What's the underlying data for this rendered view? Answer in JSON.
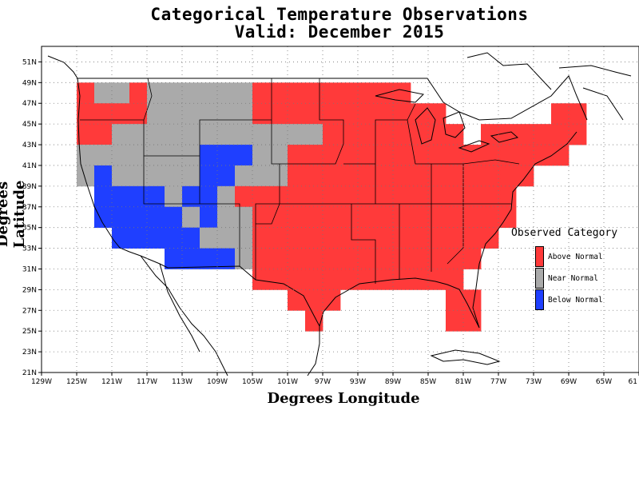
{
  "title": "Categorical Temperature Observations",
  "subtitle": "Valid: December 2015",
  "ylabel": "Degrees Latitude",
  "xlabel": "Degrees Longitude",
  "lat_ticks": [
    "21N",
    "23N",
    "25N",
    "27N",
    "29N",
    "31N",
    "33N",
    "35N",
    "37N",
    "39N",
    "41N",
    "43N",
    "45N",
    "47N",
    "49N",
    "51N"
  ],
  "lon_ticks": [
    "129W",
    "125W",
    "121W",
    "117W",
    "113W",
    "109W",
    "105W",
    "101W",
    "97W",
    "93W",
    "89W",
    "85W",
    "81W",
    "77W",
    "73W",
    "69W",
    "65W",
    "61"
  ],
  "legend": {
    "title": "Observed Category",
    "items": [
      {
        "label": "Above Normal",
        "color": "#ff3a3a"
      },
      {
        "label": "Near Normal",
        "color": "#aaaaaa"
      },
      {
        "label": "Below Normal",
        "color": "#1f3fff"
      }
    ]
  },
  "colors": {
    "A": "#ff3a3a",
    "N": "#aaaaaa",
    "B": "#1f3fff"
  },
  "grid": "dotted lat/lon graticule every 2 degrees",
  "chart_data": {
    "type": "heatmap",
    "cell_size_deg": 2,
    "x_ticks_lon": [
      -129,
      -125,
      -121,
      -117,
      -113,
      -109,
      -105,
      -101,
      -97,
      -93,
      -89,
      -85,
      -81,
      -77,
      -73,
      -69,
      -65,
      -61
    ],
    "y_ticks_lat": [
      21,
      23,
      25,
      27,
      29,
      31,
      33,
      35,
      37,
      39,
      41,
      43,
      45,
      47,
      49,
      51
    ],
    "xlim_lon": [
      -129,
      -61
    ],
    "ylim_lat": [
      21,
      52.5
    ],
    "categories": {
      "A": "Above Normal",
      "N": "Near Normal",
      "B": "Below Normal"
    },
    "rows": [
      {
        "lat": 48,
        "cells": [
          [
            -124,
            "A"
          ],
          [
            -122,
            "N"
          ],
          [
            -120,
            "N"
          ],
          [
            -118,
            "A"
          ],
          [
            -116,
            "N"
          ],
          [
            -114,
            "N"
          ],
          [
            -112,
            "N"
          ],
          [
            -110,
            "N"
          ],
          [
            -108,
            "N"
          ],
          [
            -106,
            "N"
          ],
          [
            -104,
            "A"
          ],
          [
            -102,
            "A"
          ],
          [
            -100,
            "A"
          ],
          [
            -98,
            "A"
          ],
          [
            -96,
            "A"
          ],
          [
            -94,
            "A"
          ],
          [
            -92,
            "A"
          ],
          [
            -90,
            "A"
          ],
          [
            -88,
            "A"
          ]
        ]
      },
      {
        "lat": 46,
        "cells": [
          [
            -124,
            "A"
          ],
          [
            -122,
            "A"
          ],
          [
            -120,
            "A"
          ],
          [
            -118,
            "A"
          ],
          [
            -116,
            "N"
          ],
          [
            -114,
            "N"
          ],
          [
            -112,
            "N"
          ],
          [
            -110,
            "N"
          ],
          [
            -108,
            "N"
          ],
          [
            -106,
            "N"
          ],
          [
            -104,
            "A"
          ],
          [
            -102,
            "A"
          ],
          [
            -100,
            "A"
          ],
          [
            -98,
            "A"
          ],
          [
            -96,
            "A"
          ],
          [
            -94,
            "A"
          ],
          [
            -92,
            "A"
          ],
          [
            -90,
            "A"
          ],
          [
            -88,
            "A"
          ],
          [
            -86,
            "A"
          ],
          [
            -84,
            "A"
          ],
          [
            -70,
            "A"
          ],
          [
            -68,
            "A"
          ]
        ]
      },
      {
        "lat": 44,
        "cells": [
          [
            -124,
            "A"
          ],
          [
            -122,
            "A"
          ],
          [
            -120,
            "N"
          ],
          [
            -118,
            "N"
          ],
          [
            -116,
            "N"
          ],
          [
            -114,
            "N"
          ],
          [
            -112,
            "N"
          ],
          [
            -110,
            "N"
          ],
          [
            -108,
            "N"
          ],
          [
            -106,
            "N"
          ],
          [
            -104,
            "N"
          ],
          [
            -102,
            "N"
          ],
          [
            -100,
            "N"
          ],
          [
            -98,
            "N"
          ],
          [
            -96,
            "A"
          ],
          [
            -94,
            "A"
          ],
          [
            -92,
            "A"
          ],
          [
            -90,
            "A"
          ],
          [
            -88,
            "A"
          ],
          [
            -86,
            "A"
          ],
          [
            -84,
            "A"
          ],
          [
            -82,
            "A"
          ],
          [
            -78,
            "A"
          ],
          [
            -76,
            "A"
          ],
          [
            -74,
            "A"
          ],
          [
            -72,
            "A"
          ],
          [
            -70,
            "A"
          ],
          [
            -68,
            "A"
          ]
        ]
      },
      {
        "lat": 42,
        "cells": [
          [
            -124,
            "N"
          ],
          [
            -122,
            "N"
          ],
          [
            -120,
            "N"
          ],
          [
            -118,
            "N"
          ],
          [
            -116,
            "N"
          ],
          [
            -114,
            "N"
          ],
          [
            -112,
            "N"
          ],
          [
            -110,
            "B"
          ],
          [
            -108,
            "B"
          ],
          [
            -106,
            "B"
          ],
          [
            -104,
            "N"
          ],
          [
            -102,
            "N"
          ],
          [
            -100,
            "A"
          ],
          [
            -98,
            "A"
          ],
          [
            -96,
            "A"
          ],
          [
            -94,
            "A"
          ],
          [
            -92,
            "A"
          ],
          [
            -90,
            "A"
          ],
          [
            -88,
            "A"
          ],
          [
            -86,
            "A"
          ],
          [
            -84,
            "A"
          ],
          [
            -82,
            "A"
          ],
          [
            -80,
            "A"
          ],
          [
            -78,
            "A"
          ],
          [
            -76,
            "A"
          ],
          [
            -74,
            "A"
          ],
          [
            -72,
            "A"
          ],
          [
            -70,
            "A"
          ]
        ]
      },
      {
        "lat": 40,
        "cells": [
          [
            -124,
            "N"
          ],
          [
            -122,
            "B"
          ],
          [
            -120,
            "N"
          ],
          [
            -118,
            "N"
          ],
          [
            -116,
            "N"
          ],
          [
            -114,
            "N"
          ],
          [
            -112,
            "N"
          ],
          [
            -110,
            "B"
          ],
          [
            -108,
            "B"
          ],
          [
            -106,
            "N"
          ],
          [
            -104,
            "N"
          ],
          [
            -102,
            "N"
          ],
          [
            -100,
            "A"
          ],
          [
            -98,
            "A"
          ],
          [
            -96,
            "A"
          ],
          [
            -94,
            "A"
          ],
          [
            -92,
            "A"
          ],
          [
            -90,
            "A"
          ],
          [
            -88,
            "A"
          ],
          [
            -86,
            "A"
          ],
          [
            -84,
            "A"
          ],
          [
            -82,
            "A"
          ],
          [
            -80,
            "A"
          ],
          [
            -78,
            "A"
          ],
          [
            -76,
            "A"
          ],
          [
            -74,
            "A"
          ]
        ]
      },
      {
        "lat": 38,
        "cells": [
          [
            -122,
            "B"
          ],
          [
            -120,
            "B"
          ],
          [
            -118,
            "B"
          ],
          [
            -116,
            "B"
          ],
          [
            -114,
            "N"
          ],
          [
            -112,
            "B"
          ],
          [
            -110,
            "B"
          ],
          [
            -108,
            "N"
          ],
          [
            -106,
            "A"
          ],
          [
            -104,
            "A"
          ],
          [
            -102,
            "A"
          ],
          [
            -100,
            "A"
          ],
          [
            -98,
            "A"
          ],
          [
            -96,
            "A"
          ],
          [
            -94,
            "A"
          ],
          [
            -92,
            "A"
          ],
          [
            -90,
            "A"
          ],
          [
            -88,
            "A"
          ],
          [
            -86,
            "A"
          ],
          [
            -84,
            "A"
          ],
          [
            -82,
            "A"
          ],
          [
            -80,
            "A"
          ],
          [
            -78,
            "A"
          ],
          [
            -76,
            "A"
          ]
        ]
      },
      {
        "lat": 36,
        "cells": [
          [
            -122,
            "B"
          ],
          [
            -120,
            "B"
          ],
          [
            -118,
            "B"
          ],
          [
            -116,
            "B"
          ],
          [
            -114,
            "B"
          ],
          [
            -112,
            "N"
          ],
          [
            -110,
            "B"
          ],
          [
            -108,
            "N"
          ],
          [
            -106,
            "N"
          ],
          [
            -104,
            "A"
          ],
          [
            -102,
            "A"
          ],
          [
            -100,
            "A"
          ],
          [
            -98,
            "A"
          ],
          [
            -96,
            "A"
          ],
          [
            -94,
            "A"
          ],
          [
            -92,
            "A"
          ],
          [
            -90,
            "A"
          ],
          [
            -88,
            "A"
          ],
          [
            -86,
            "A"
          ],
          [
            -84,
            "A"
          ],
          [
            -82,
            "A"
          ],
          [
            -80,
            "A"
          ],
          [
            -78,
            "A"
          ],
          [
            -76,
            "A"
          ]
        ]
      },
      {
        "lat": 34,
        "cells": [
          [
            -120,
            "B"
          ],
          [
            -118,
            "B"
          ],
          [
            -116,
            "B"
          ],
          [
            -114,
            "B"
          ],
          [
            -112,
            "B"
          ],
          [
            -110,
            "N"
          ],
          [
            -108,
            "N"
          ],
          [
            -106,
            "N"
          ],
          [
            -104,
            "A"
          ],
          [
            -102,
            "A"
          ],
          [
            -100,
            "A"
          ],
          [
            -98,
            "A"
          ],
          [
            -96,
            "A"
          ],
          [
            -94,
            "A"
          ],
          [
            -92,
            "A"
          ],
          [
            -90,
            "A"
          ],
          [
            -88,
            "A"
          ],
          [
            -86,
            "A"
          ],
          [
            -84,
            "A"
          ],
          [
            -82,
            "A"
          ],
          [
            -80,
            "A"
          ],
          [
            -78,
            "A"
          ]
        ]
      },
      {
        "lat": 32,
        "cells": [
          [
            -114,
            "B"
          ],
          [
            -112,
            "B"
          ],
          [
            -110,
            "B"
          ],
          [
            -108,
            "B"
          ],
          [
            -106,
            "N"
          ],
          [
            -104,
            "A"
          ],
          [
            -102,
            "A"
          ],
          [
            -100,
            "A"
          ],
          [
            -98,
            "A"
          ],
          [
            -96,
            "A"
          ],
          [
            -94,
            "A"
          ],
          [
            -92,
            "A"
          ],
          [
            -90,
            "A"
          ],
          [
            -88,
            "A"
          ],
          [
            -86,
            "A"
          ],
          [
            -84,
            "A"
          ],
          [
            -82,
            "A"
          ],
          [
            -80,
            "A"
          ]
        ]
      },
      {
        "lat": 30,
        "cells": [
          [
            -104,
            "A"
          ],
          [
            -102,
            "A"
          ],
          [
            -100,
            "A"
          ],
          [
            -98,
            "A"
          ],
          [
            -96,
            "A"
          ],
          [
            -94,
            "A"
          ],
          [
            -92,
            "A"
          ],
          [
            -90,
            "A"
          ],
          [
            -88,
            "A"
          ],
          [
            -86,
            "A"
          ],
          [
            -84,
            "A"
          ],
          [
            -82,
            "A"
          ]
        ]
      },
      {
        "lat": 28,
        "cells": [
          [
            -100,
            "A"
          ],
          [
            -98,
            "A"
          ],
          [
            -96,
            "A"
          ],
          [
            -82,
            "A"
          ],
          [
            -80,
            "A"
          ]
        ]
      },
      {
        "lat": 26,
        "cells": [
          [
            -98,
            "A"
          ],
          [
            -82,
            "A"
          ],
          [
            -80,
            "A"
          ]
        ]
      }
    ]
  }
}
